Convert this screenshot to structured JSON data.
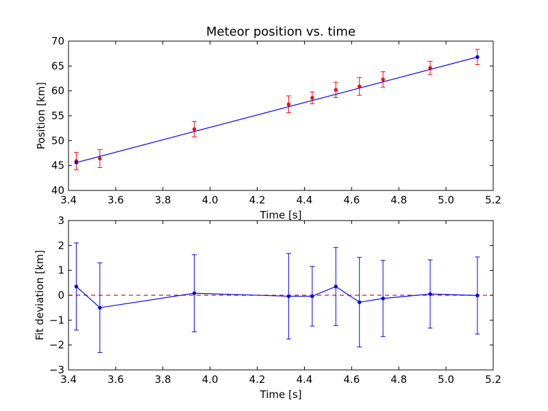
{
  "chart_data": [
    {
      "type": "line",
      "title": "Meteor position vs. time",
      "xlabel": "Time [s]",
      "ylabel": "Position [km]",
      "xlim": [
        3.4,
        5.2
      ],
      "ylim": [
        40,
        70
      ],
      "xticks": [
        "3.4",
        "3.6",
        "3.8",
        "4.0",
        "4.2",
        "4.4",
        "4.6",
        "4.8",
        "5.0",
        "5.2"
      ],
      "yticks": [
        "40",
        "45",
        "50",
        "55",
        "60",
        "65",
        "70"
      ],
      "grid": false,
      "series": [
        {
          "kind": "errorbar-points",
          "color": "#ff0000",
          "x": [
            3.433,
            3.533,
            3.933,
            4.333,
            4.433,
            4.533,
            4.633,
            4.733,
            4.933,
            5.133
          ],
          "y": [
            45.9,
            46.4,
            52.3,
            57.3,
            58.6,
            60.2,
            60.9,
            62.3,
            64.6,
            66.8
          ],
          "yerr": [
            1.75,
            1.8,
            1.55,
            1.7,
            1.2,
            1.55,
            1.8,
            1.55,
            1.35,
            1.55
          ]
        },
        {
          "kind": "fit-line",
          "color": "#0000ff",
          "x": [
            3.433,
            5.133
          ],
          "y": [
            45.6,
            66.8
          ]
        }
      ]
    },
    {
      "type": "line",
      "title": "",
      "xlabel": "Time [s]",
      "ylabel": "Fit deviation [km]",
      "xlim": [
        3.4,
        5.2
      ],
      "ylim": [
        -3,
        3
      ],
      "xticks": [
        "3.4",
        "3.6",
        "3.8",
        "4.0",
        "4.2",
        "4.4",
        "4.6",
        "4.8",
        "5.0",
        "5.2"
      ],
      "yticks": [
        "−3",
        "−2",
        "−1",
        "0",
        "1",
        "2",
        "3"
      ],
      "grid": false,
      "reference_line": {
        "y": 0,
        "color": "#ff0000",
        "style": "dashed"
      },
      "series": [
        {
          "kind": "errorbar-line",
          "color": "#0000ff",
          "x": [
            3.433,
            3.533,
            3.933,
            4.333,
            4.433,
            4.533,
            4.633,
            4.733,
            4.933,
            5.133
          ],
          "y": [
            0.35,
            -0.5,
            0.08,
            -0.04,
            -0.04,
            0.35,
            -0.28,
            -0.13,
            0.05,
            -0.01
          ],
          "yerr": [
            1.75,
            1.8,
            1.55,
            1.72,
            1.2,
            1.57,
            1.8,
            1.53,
            1.37,
            1.55
          ]
        }
      ]
    }
  ]
}
